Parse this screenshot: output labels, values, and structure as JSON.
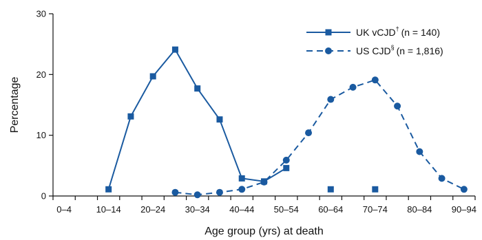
{
  "chart_data": {
    "type": "line",
    "xlabel": "Age group (yrs) at death",
    "ylabel": "Percentage",
    "ylim": [
      0,
      30
    ],
    "yticks": [
      "0",
      "10",
      "20",
      "30"
    ],
    "categories": [
      "0–4",
      "5–9",
      "10–14",
      "15–19",
      "20–24",
      "25–29",
      "30–34",
      "35–39",
      "40–44",
      "45–49",
      "50–54",
      "55–59",
      "60–64",
      "65–69",
      "70–74",
      "75–79",
      "80–84",
      "85–89",
      "90–94"
    ],
    "xtick_labels": [
      "0–4",
      "10–14",
      "20–24",
      "30–34",
      "40–44",
      "50–54",
      "60–64",
      "70–74",
      "80–84",
      "90–94"
    ],
    "legend_position": "top-right",
    "grid": false,
    "series": [
      {
        "name": "UK vCJD",
        "name_sup": "†",
        "name_suffix": "(n = 140)",
        "color": "#1a5aa0",
        "line_style": "solid",
        "marker": "square",
        "connected_values": [
          null,
          null,
          1.1,
          13.1,
          19.7,
          24.1,
          17.7,
          12.6,
          2.9,
          2.4,
          4.6,
          null,
          null,
          null,
          null,
          null,
          null,
          null,
          null
        ],
        "isolated_points": [
          {
            "category": "60–64",
            "value": 1.1
          },
          {
            "category": "70–74",
            "value": 1.1
          }
        ]
      },
      {
        "name": "US CJD",
        "name_sup": "§",
        "name_suffix": "(n = 1,816)",
        "color": "#1a5aa0",
        "line_style": "dashed",
        "marker": "circle",
        "connected_values": [
          null,
          null,
          null,
          null,
          null,
          0.6,
          0.2,
          0.6,
          1.1,
          2.3,
          5.9,
          10.4,
          15.9,
          17.9,
          19.1,
          14.8,
          7.3,
          2.9,
          1.1
        ]
      }
    ]
  }
}
